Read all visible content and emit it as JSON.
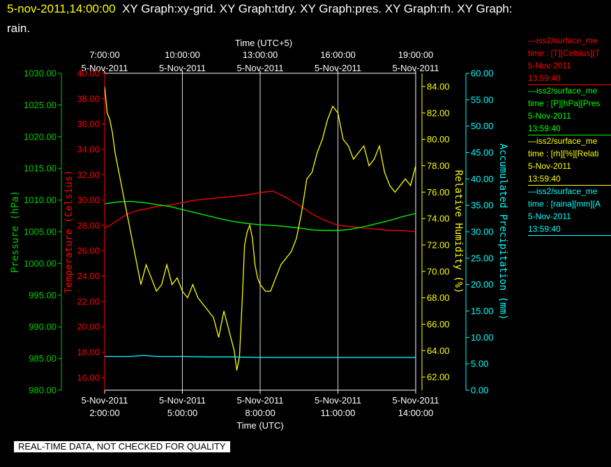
{
  "header": {
    "date_label": "5-nov-2011,14:00:00",
    "title_rest": "XY Graph:xy-grid.  XY Graph:tdry.  XY Graph:pres.  XY Graph:rh.  XY Graph:",
    "title_line2": "rain."
  },
  "legend": [
    {
      "line1": "—iss2/surface_me",
      "line2": "time : [T][Celsius][T",
      "line3": "5-Nov-2011",
      "line4": "13:59:40",
      "color": "#ff0000"
    },
    {
      "line1": "—iss2/surface_me",
      "line2": "time : [P][hPa][Pres",
      "line3": "5-Nov-2011",
      "line4": "13:59:40",
      "color": "#00ff00"
    },
    {
      "line1": "—iss2/surface_me",
      "line2": "time : [rh][%][Relati",
      "line3": "5-Nov-2011",
      "line4": "13:59:40",
      "color": "#ffff00"
    },
    {
      "line1": "—iss2/surface_me",
      "line2": "time : [raina][mm][A",
      "line3": "5-Nov-2011",
      "line4": "13:59:40",
      "color": "#00ffff"
    }
  ],
  "footer": {
    "note": "REAL-TIME DATA, NOT CHECKED FOR QUALITY"
  },
  "chart_data": {
    "type": "line",
    "top_axis": {
      "label": "Time (UTC+5)",
      "ticks": [
        {
          "t": "7:00:00",
          "d": "5-Nov-2011",
          "h": 0
        },
        {
          "t": "10:00:00",
          "d": "5-Nov-2011",
          "h": 3
        },
        {
          "t": "13:00:00",
          "d": "5-Nov-2011",
          "h": 6
        },
        {
          "t": "16:00:00",
          "d": "5-Nov-2011",
          "h": 9
        },
        {
          "t": "19:00:00",
          "d": "5-Nov-2011",
          "h": 12
        }
      ]
    },
    "bottom_axis": {
      "label": "Time (UTC)",
      "range_hours_utc": [
        2.0,
        14.0
      ],
      "ticks": [
        {
          "d": "5-Nov-2011",
          "t": "2:00:00",
          "h": 0
        },
        {
          "d": "5-Nov-2011",
          "t": "5:00:00",
          "h": 3
        },
        {
          "d": "5-Nov-2011",
          "t": "8:00:00",
          "h": 6
        },
        {
          "d": "5-Nov-2011",
          "t": "11:00:00",
          "h": 9
        },
        {
          "d": "5-Nov-2011",
          "t": "14:00:00",
          "h": 12
        }
      ]
    },
    "axes": {
      "pressure": {
        "label": "Pressure (hPa)",
        "color": "#00cc00",
        "range": [
          980,
          1030
        ],
        "ticks": [
          "980.00",
          "985.00",
          "990.00",
          "995.00",
          "1000.00",
          "1005.00",
          "1010.00",
          "1015.00",
          "1020.00",
          "1025.00",
          "1030.00"
        ]
      },
      "temperature": {
        "label": "Temperature (Celsius)",
        "color": "#ff0000",
        "range": [
          15,
          40
        ],
        "ticks": [
          "16.00",
          "18.00",
          "20.00",
          "22.00",
          "24.00",
          "26.00",
          "28.00",
          "30.00",
          "32.00",
          "34.00",
          "36.00",
          "38.00",
          "40.00"
        ]
      },
      "humidity": {
        "label": "Relative Humidity (%)",
        "color": "#ffff00",
        "range": [
          61,
          85
        ],
        "ticks": [
          "62.00",
          "64.00",
          "66.00",
          "68.00",
          "70.00",
          "72.00",
          "74.00",
          "76.00",
          "78.00",
          "80.00",
          "82.00",
          "84.00"
        ]
      },
      "precip": {
        "label": "Accumulated Precipitation (mm)",
        "color": "#00ffff",
        "range": [
          0,
          60
        ],
        "ticks": [
          "0.00",
          "5.00",
          "10.00",
          "15.00",
          "20.00",
          "25.00",
          "30.00",
          "35.00",
          "40.00",
          "45.00",
          "50.00",
          "55.00",
          "60.00"
        ]
      }
    },
    "series": [
      {
        "name": "iss2/surface_me",
        "axis": "temperature",
        "color": "#ff0000",
        "x": [
          0,
          0.2,
          0.5,
          0.8,
          1.0,
          1.3,
          1.6,
          2.0,
          2.5,
          3.0,
          3.5,
          4.0,
          4.5,
          5.0,
          5.5,
          6.0,
          6.5,
          7.0,
          7.5,
          8.0,
          8.5,
          9.0,
          9.5,
          10.0,
          10.5,
          11.0,
          11.5,
          12.0
        ],
        "y": [
          27.8,
          28.0,
          28.4,
          28.8,
          29.0,
          29.2,
          29.3,
          29.5,
          29.6,
          29.8,
          30.0,
          30.1,
          30.2,
          30.3,
          30.4,
          30.6,
          30.7,
          30.2,
          29.6,
          28.9,
          28.4,
          28.0,
          27.9,
          27.8,
          27.7,
          27.6,
          27.6,
          27.5
        ]
      },
      {
        "name": "iss2/surface_me",
        "axis": "pressure",
        "color": "#00ff00",
        "x": [
          0,
          0.5,
          1.0,
          1.5,
          2.0,
          2.5,
          3.0,
          3.5,
          4.0,
          4.5,
          5.0,
          5.5,
          6.0,
          6.5,
          7.0,
          7.5,
          8.0,
          8.5,
          9.0,
          9.5,
          10.0,
          10.5,
          11.0,
          11.5,
          12.0
        ],
        "y": [
          1009.4,
          1009.7,
          1009.8,
          1009.6,
          1009.3,
          1009.0,
          1008.5,
          1008.0,
          1007.5,
          1007.0,
          1006.6,
          1006.3,
          1006.1,
          1006.0,
          1005.8,
          1005.6,
          1005.3,
          1005.2,
          1005.2,
          1005.4,
          1005.8,
          1006.3,
          1006.8,
          1007.4,
          1007.9
        ]
      },
      {
        "name": "iss2/surface_me",
        "axis": "humidity",
        "color": "#ffff00",
        "x": [
          0,
          0.1,
          0.2,
          0.3,
          0.4,
          0.5,
          0.6,
          0.7,
          0.8,
          1.0,
          1.2,
          1.4,
          1.6,
          1.8,
          2.0,
          2.2,
          2.4,
          2.6,
          2.8,
          3.0,
          3.2,
          3.4,
          3.6,
          3.8,
          4.0,
          4.2,
          4.4,
          4.6,
          4.8,
          5.0,
          5.1,
          5.2,
          5.3,
          5.4,
          5.5,
          5.6,
          5.7,
          5.8,
          5.9,
          6.0,
          6.2,
          6.4,
          6.6,
          6.8,
          7.0,
          7.2,
          7.4,
          7.6,
          7.8,
          8.0,
          8.2,
          8.4,
          8.6,
          8.8,
          9.0,
          9.2,
          9.4,
          9.6,
          9.8,
          10.0,
          10.2,
          10.4,
          10.6,
          10.8,
          11.0,
          11.2,
          11.4,
          11.6,
          11.8,
          12.0
        ],
        "y": [
          84.0,
          82.0,
          81.5,
          80.5,
          79.0,
          78.0,
          77.0,
          76.0,
          75.0,
          73.0,
          71.0,
          69.0,
          70.5,
          69.5,
          68.5,
          69.0,
          70.5,
          69.0,
          69.5,
          68.5,
          68.0,
          69.0,
          68.0,
          67.5,
          67.0,
          66.5,
          65.0,
          67.0,
          65.5,
          64.0,
          62.5,
          63.5,
          67.5,
          72.0,
          73.0,
          73.5,
          72.5,
          70.5,
          69.5,
          69.0,
          68.5,
          68.5,
          69.5,
          70.5,
          71.0,
          71.5,
          72.5,
          74.5,
          77.0,
          77.5,
          79.0,
          80.0,
          81.5,
          82.5,
          82.0,
          80.0,
          79.5,
          78.5,
          79.0,
          79.5,
          78.0,
          78.5,
          79.5,
          77.5,
          76.5,
          76.0,
          76.5,
          77.0,
          76.5,
          78.0
        ]
      },
      {
        "name": "iss2/surface_me",
        "axis": "precip",
        "color": "#00ffff",
        "x": [
          0,
          1,
          1.5,
          2,
          3,
          4,
          5,
          6,
          7,
          8,
          9,
          10,
          11,
          12
        ],
        "y": [
          6.4,
          6.4,
          6.6,
          6.4,
          6.4,
          6.3,
          6.3,
          6.2,
          6.2,
          6.2,
          6.2,
          6.2,
          6.2,
          6.2
        ]
      }
    ]
  }
}
